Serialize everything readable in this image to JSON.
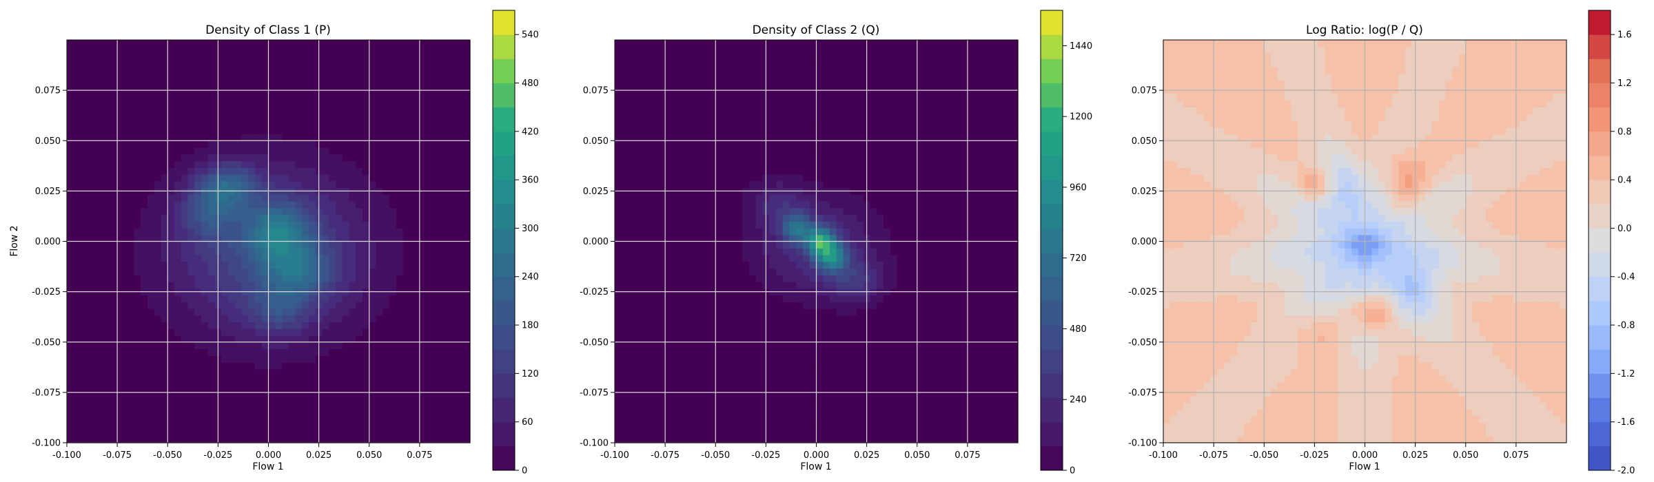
{
  "chart_data": [
    {
      "type": "heatmap",
      "title": "Density of Class 1 (P)",
      "xlabel": "Flow 1",
      "ylabel": "Flow 2",
      "xlim": [
        -0.1,
        0.1
      ],
      "ylim": [
        -0.1,
        0.1
      ],
      "x_ticks": [
        "-0.100",
        "-0.075",
        "-0.050",
        "-0.025",
        "0.000",
        "0.025",
        "0.050",
        "0.075"
      ],
      "y_ticks": [
        "-0.100",
        "-0.075",
        "-0.050",
        "-0.025",
        "0.000",
        "0.025",
        "0.050",
        "0.075"
      ],
      "grid": true,
      "colormap": "viridis",
      "colorbar": {
        "range": [
          0,
          570
        ],
        "ticks": [
          "0",
          "60",
          "120",
          "180",
          "240",
          "300",
          "360",
          "420",
          "480",
          "540"
        ]
      },
      "density_blobs": [
        {
          "x": 0.0,
          "y": -0.005,
          "sx": 0.035,
          "sy": 0.03,
          "peak": 180
        },
        {
          "x": -0.02,
          "y": 0.028,
          "sx": 0.01,
          "sy": 0.008,
          "peak": 160
        },
        {
          "x": 0.005,
          "y": 0.005,
          "sx": 0.01,
          "sy": 0.01,
          "peak": 170
        },
        {
          "x": 0.015,
          "y": -0.015,
          "sx": 0.012,
          "sy": 0.01,
          "peak": 130
        },
        {
          "x": -0.03,
          "y": 0.015,
          "sx": 0.01,
          "sy": 0.01,
          "peak": 110
        },
        {
          "x": 0.005,
          "y": -0.035,
          "sx": 0.01,
          "sy": 0.008,
          "peak": 90
        }
      ]
    },
    {
      "type": "heatmap",
      "title": "Density of Class 2 (Q)",
      "xlabel": "Flow 1",
      "ylabel": "",
      "xlim": [
        -0.1,
        0.1
      ],
      "ylim": [
        -0.1,
        0.1
      ],
      "x_ticks": [
        "-0.100",
        "-0.075",
        "-0.050",
        "-0.025",
        "0.000",
        "0.025",
        "0.050",
        "0.075"
      ],
      "y_ticks": [
        "-0.100",
        "-0.075",
        "-0.050",
        "-0.025",
        "0.000",
        "0.025",
        "0.050",
        "0.075"
      ],
      "grid": true,
      "colormap": "viridis",
      "colorbar": {
        "range": [
          0,
          1560
        ],
        "ticks": [
          "0",
          "240",
          "480",
          "720",
          "960",
          "1200",
          "1440"
        ]
      },
      "density_blobs": [
        {
          "x": 0.0,
          "y": -0.002,
          "sx": 0.022,
          "sy": 0.018,
          "peak": 320
        },
        {
          "x": 0.002,
          "y": 0.0,
          "sx": 0.005,
          "sy": 0.005,
          "peak": 900
        },
        {
          "x": 0.008,
          "y": -0.008,
          "sx": 0.005,
          "sy": 0.005,
          "peak": 700
        },
        {
          "x": -0.01,
          "y": 0.007,
          "sx": 0.005,
          "sy": 0.005,
          "peak": 550
        },
        {
          "x": 0.02,
          "y": -0.02,
          "sx": 0.01,
          "sy": 0.008,
          "peak": 260
        },
        {
          "x": -0.02,
          "y": 0.02,
          "sx": 0.01,
          "sy": 0.008,
          "peak": 200
        }
      ]
    },
    {
      "type": "heatmap",
      "title": "Log Ratio: log(P / Q)",
      "xlabel": "Flow 1",
      "ylabel": "",
      "xlim": [
        -0.1,
        0.1
      ],
      "ylim": [
        -0.1,
        0.1
      ],
      "x_ticks": [
        "-0.100",
        "-0.075",
        "-0.050",
        "-0.025",
        "0.000",
        "0.025",
        "0.050",
        "0.075"
      ],
      "y_ticks": [
        "-0.100",
        "-0.075",
        "-0.050",
        "-0.025",
        "0.000",
        "0.025",
        "0.050",
        "0.075"
      ],
      "grid": true,
      "colormap": "coolwarm",
      "colorbar": {
        "range": [
          -2.0,
          1.8
        ],
        "ticks": [
          "-2.0",
          "-1.6",
          "-1.2",
          "-0.8",
          "-0.4",
          "0.0",
          "0.4",
          "0.8",
          "1.2",
          "1.6"
        ]
      },
      "background_value": 0.45,
      "center_blobs": [
        {
          "x": 0.0,
          "y": -0.005,
          "sx": 0.035,
          "sy": 0.03,
          "amp": -0.85
        },
        {
          "x": 0.0,
          "y": -0.002,
          "sx": 0.008,
          "sy": 0.006,
          "amp": -0.8
        },
        {
          "x": 0.025,
          "y": -0.022,
          "sx": 0.008,
          "sy": 0.01,
          "amp": -0.5
        },
        {
          "x": -0.01,
          "y": 0.028,
          "sx": 0.008,
          "sy": 0.01,
          "amp": -0.4
        },
        {
          "x": 0.02,
          "y": 0.03,
          "sx": 0.008,
          "sy": 0.01,
          "amp": 0.7
        },
        {
          "x": 0.003,
          "y": -0.035,
          "sx": 0.007,
          "sy": 0.006,
          "amp": 0.9
        },
        {
          "x": -0.025,
          "y": 0.028,
          "sx": 0.006,
          "sy": 0.005,
          "amp": 0.6
        },
        {
          "x": -0.025,
          "y": -0.045,
          "sx": 0.01,
          "sy": 0.008,
          "amp": 0.35
        }
      ]
    }
  ]
}
